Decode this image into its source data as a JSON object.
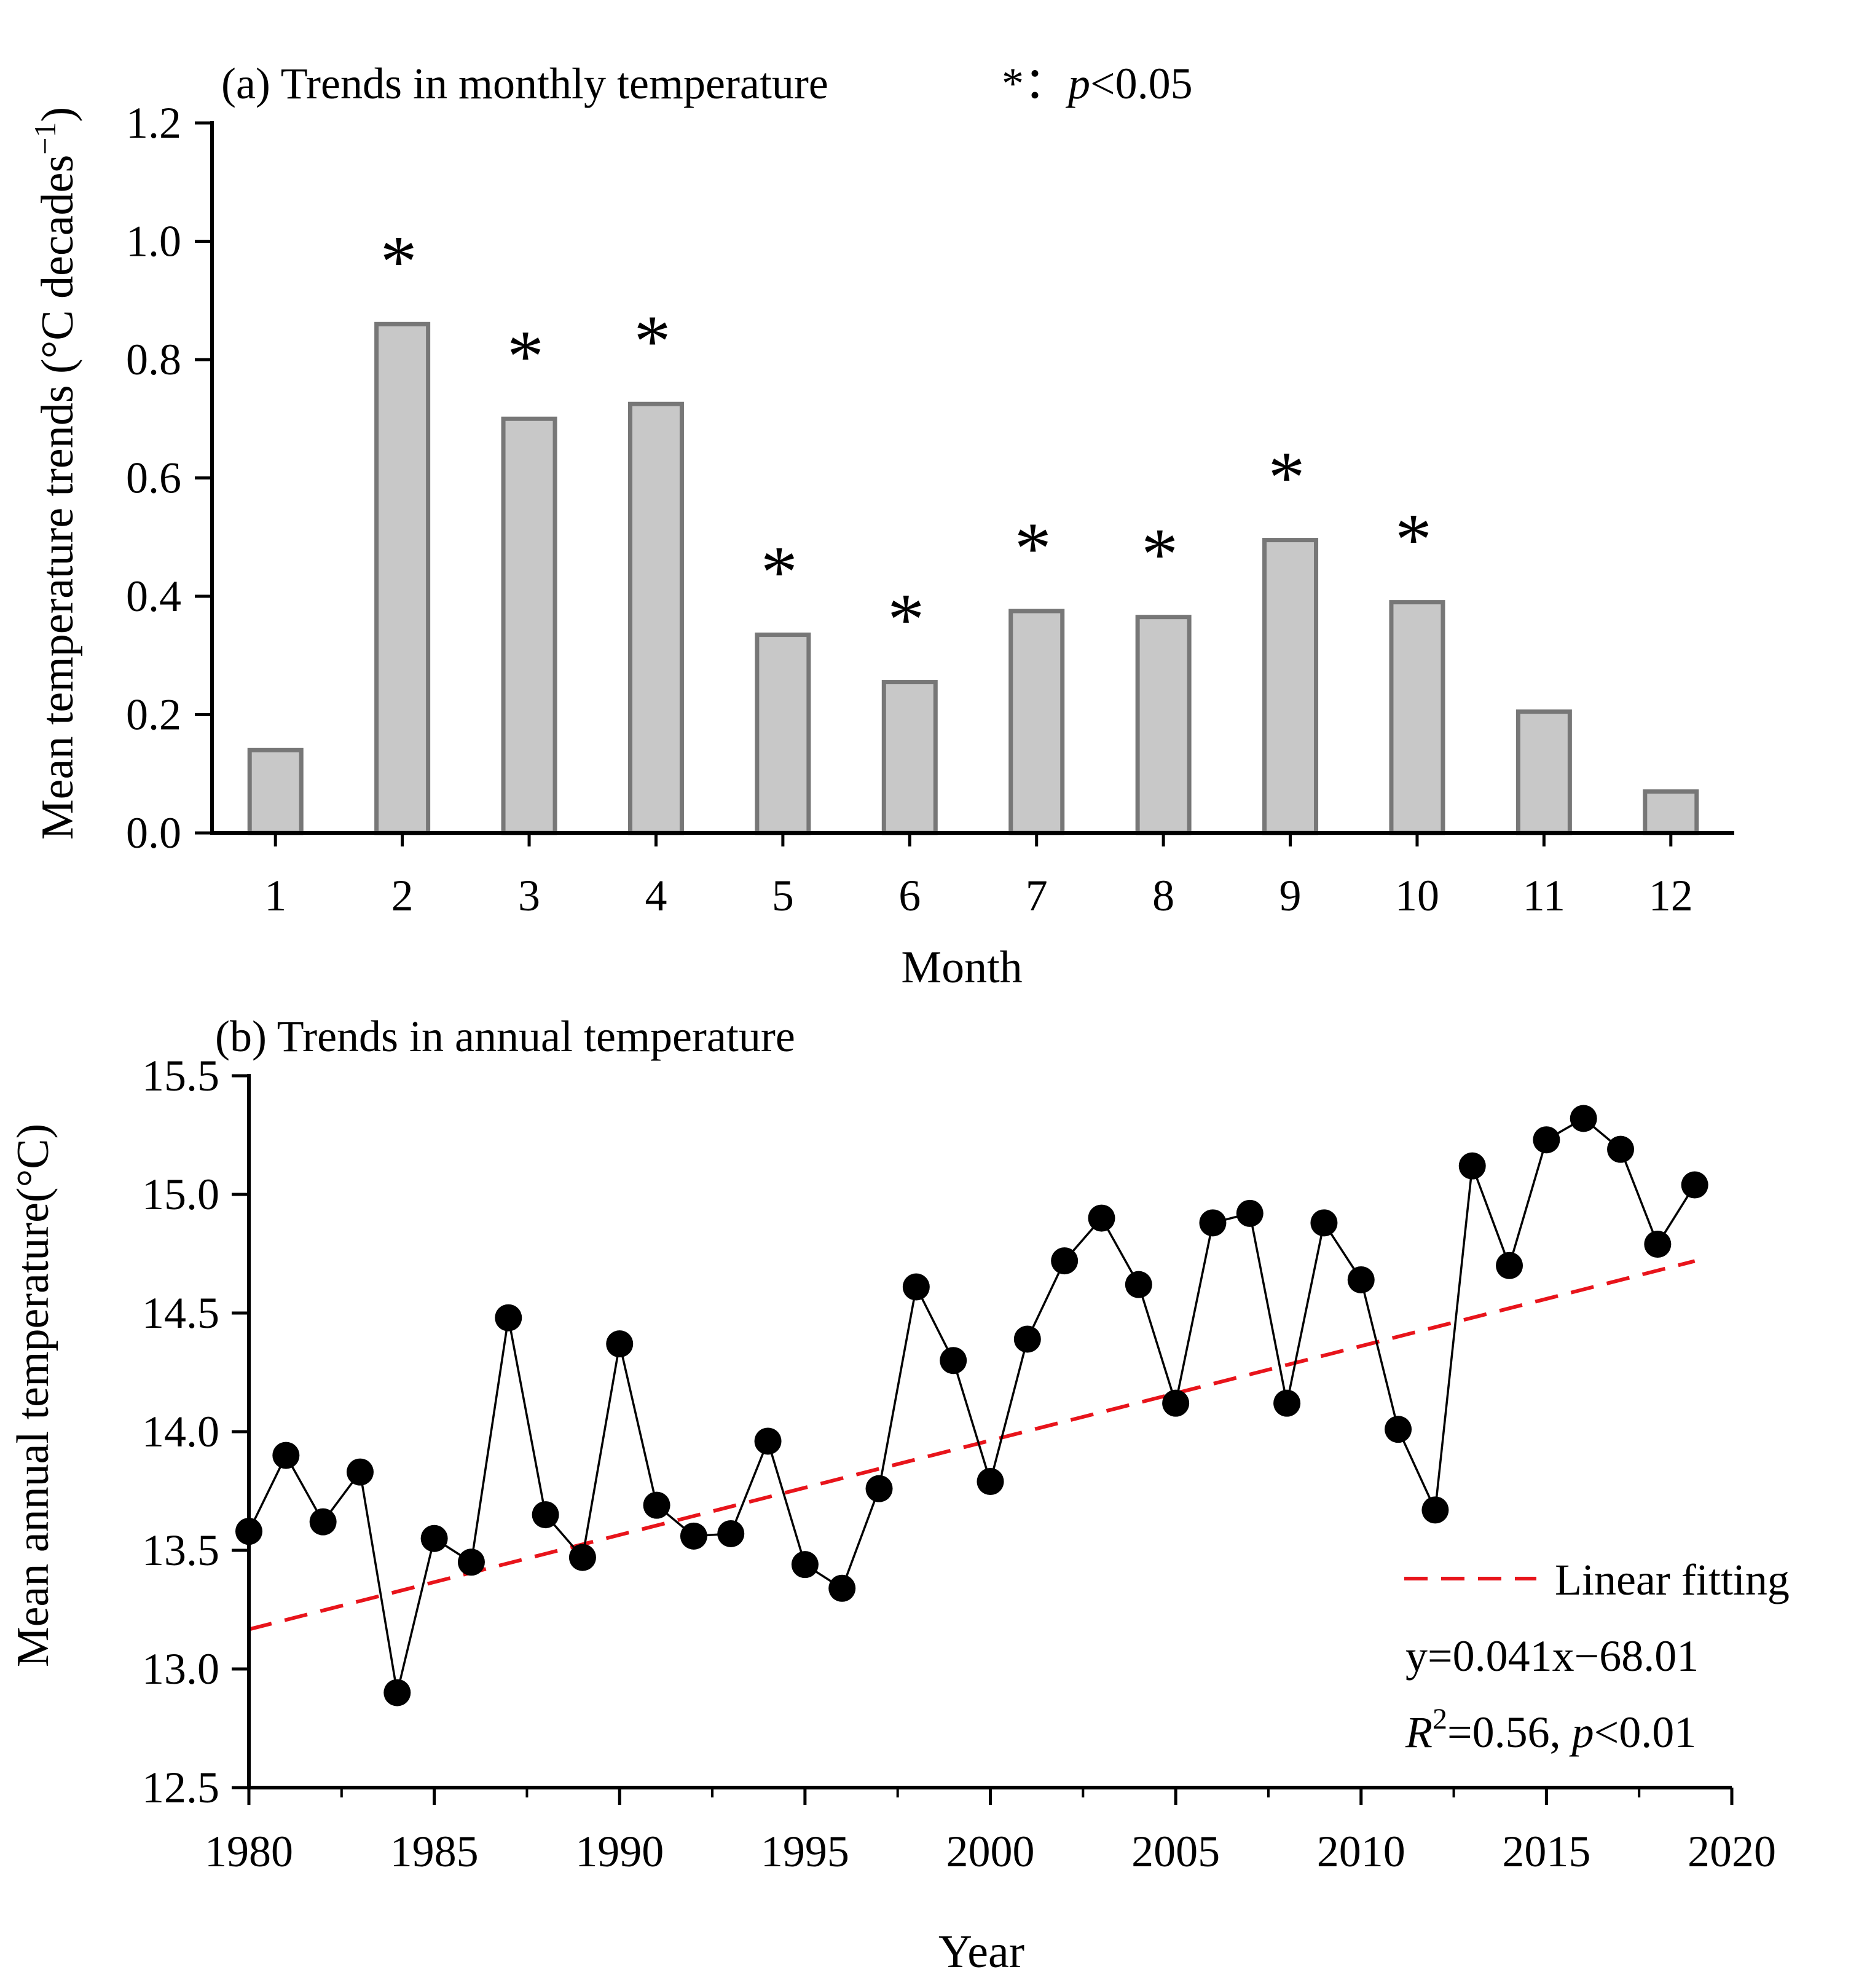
{
  "chart_data": [
    {
      "type": "bar",
      "title": "(a) Trends in monthly temperature",
      "significance_note": {
        "symbol": "*",
        "colon": "：",
        "p": "p",
        "rest": "<0.05"
      },
      "xlabel": "Month",
      "ylabel": "Mean temperature trends (°C decades",
      "ylabel_sup": "−1",
      "ylabel_close": ")",
      "ylim": [
        0.0,
        1.2
      ],
      "yticks": [
        "0.0",
        "0.2",
        "0.4",
        "0.6",
        "0.8",
        "1.0",
        "1.2"
      ],
      "categories": [
        "1",
        "2",
        "3",
        "4",
        "5",
        "6",
        "7",
        "8",
        "9",
        "10",
        "11",
        "12"
      ],
      "values": [
        0.14,
        0.86,
        0.7,
        0.725,
        0.335,
        0.255,
        0.375,
        0.365,
        0.495,
        0.39,
        0.205,
        0.07
      ],
      "significant": [
        false,
        true,
        true,
        true,
        true,
        true,
        true,
        true,
        true,
        true,
        false,
        false
      ],
      "bar_color": "#c8c8c8",
      "bar_edge": "#777777"
    },
    {
      "type": "line",
      "title": "(b) Trends in annual temperature",
      "xlabel": "Year",
      "ylabel": "Mean annual temperature(°C)",
      "xlim": [
        1980,
        2020
      ],
      "ylim": [
        12.5,
        15.5
      ],
      "xticks": [
        "1980",
        "1985",
        "1990",
        "1995",
        "2000",
        "2005",
        "2010",
        "2015",
        "2020"
      ],
      "yticks": [
        "12.5",
        "13.0",
        "13.5",
        "14.0",
        "14.5",
        "15.0",
        "15.5"
      ],
      "x": [
        1980,
        1981,
        1982,
        1983,
        1984,
        1985,
        1986,
        1987,
        1988,
        1989,
        1990,
        1991,
        1992,
        1993,
        1994,
        1995,
        1996,
        1997,
        1998,
        1999,
        2000,
        2001,
        2002,
        2003,
        2004,
        2005,
        2006,
        2007,
        2008,
        2009,
        2010,
        2011,
        2012,
        2013,
        2014,
        2015,
        2016,
        2017,
        2018,
        2019
      ],
      "y": [
        13.58,
        13.9,
        13.62,
        13.83,
        12.9,
        13.55,
        13.45,
        14.48,
        13.65,
        13.47,
        14.37,
        13.69,
        13.56,
        13.57,
        13.96,
        13.44,
        13.34,
        13.76,
        14.61,
        14.3,
        13.79,
        14.39,
        14.72,
        14.9,
        14.62,
        14.12,
        14.88,
        14.92,
        14.12,
        14.88,
        14.64,
        14.01,
        13.67,
        15.12,
        14.7,
        15.23,
        15.32,
        15.19,
        14.79,
        15.04
      ],
      "fit": {
        "label": "Linear fitting",
        "slope": 0.041,
        "intercept": -68.01,
        "x_range": [
          1980,
          2019
        ],
        "color": "#e8141b"
      },
      "equation": "y=0.041x−68.01",
      "stats": {
        "r": "R",
        "sup": "2",
        "r2_text": "=0.56, ",
        "p": "p",
        "p_text": "<0.01"
      }
    }
  ]
}
